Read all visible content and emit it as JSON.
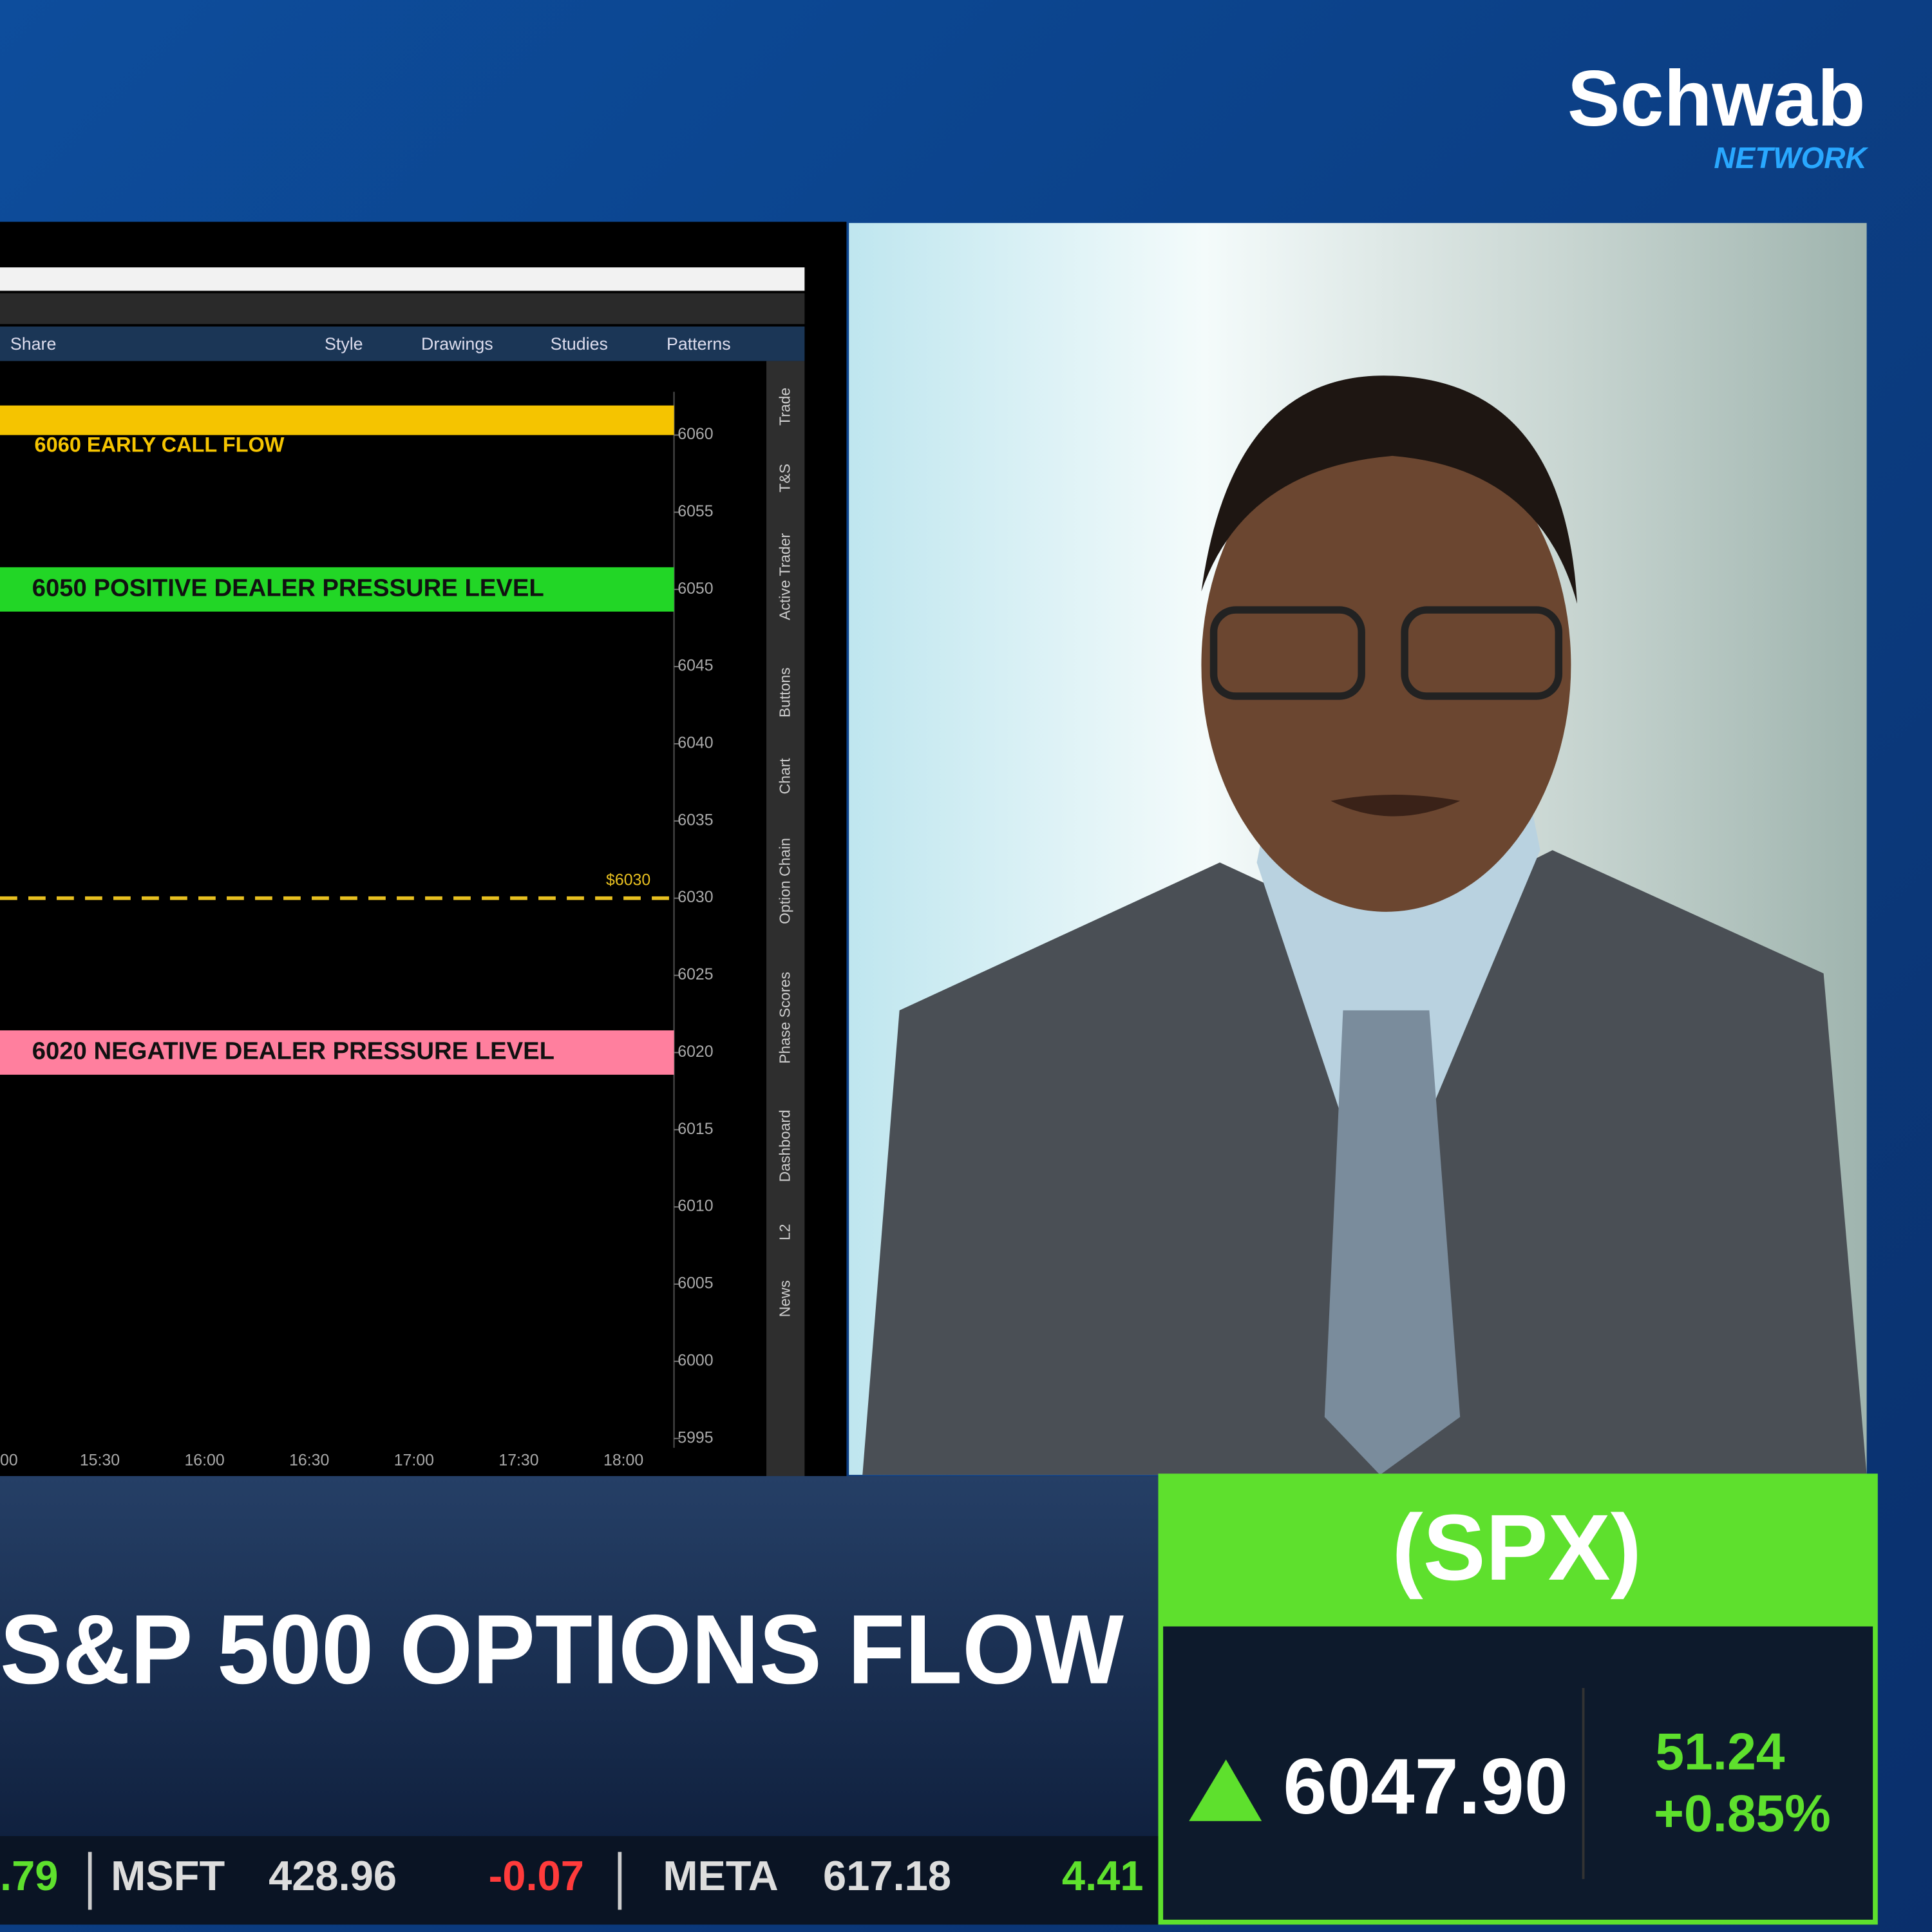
{
  "logo": {
    "name": "Schwab",
    "sub": "NETWORK"
  },
  "toolbar": {
    "items": [
      "Share",
      "Style",
      "Drawings",
      "Studies",
      "Patterns"
    ]
  },
  "chart_data": {
    "type": "levels",
    "ylim": [
      5994.4,
      6062.8
    ],
    "yticks": [
      5995,
      6000,
      6005,
      6010,
      6015,
      6020,
      6025,
      6030,
      6035,
      6040,
      6045,
      6050,
      6055,
      6060
    ],
    "categories": [
      "00",
      "15:30",
      "16:00",
      "16:30",
      "17:00",
      "17:30",
      "18:00"
    ],
    "levels": [
      {
        "value": 6060,
        "label": "6060 EARLY CALL FLOW",
        "color": "#f5c400",
        "style": "band"
      },
      {
        "value": 6050,
        "label": "6050 POSITIVE DEALER PRESSURE LEVEL",
        "color": "#22d626",
        "style": "band"
      },
      {
        "value": 6030,
        "label": "$6030",
        "color": "#e8c020",
        "style": "dashed"
      },
      {
        "value": 6020,
        "label": "6020 NEGATIVE DEALER PRESSURE LEVEL",
        "color": "#ff7f9e",
        "style": "band"
      }
    ]
  },
  "side_tabs": [
    "Trade",
    "T&S",
    "Active Trader",
    "Buttons",
    "Chart",
    "Option Chain",
    "Phase Scores",
    "Dashboard",
    "L2",
    "News"
  ],
  "headline": "S&P 500 OPTIONS FLOW",
  "quote": {
    "symbol": "(SPX)",
    "price": "6047.90",
    "change": "51.24",
    "percent": "+0.85%"
  },
  "ticker": [
    {
      "price": ".79"
    },
    {
      "symbol": "MSFT",
      "price": "428.96",
      "change": "-0.07",
      "color": "#ff3b3b"
    },
    {
      "symbol": "META",
      "price": "617.18",
      "change": "4.41",
      "color": "#5ee02d"
    }
  ]
}
